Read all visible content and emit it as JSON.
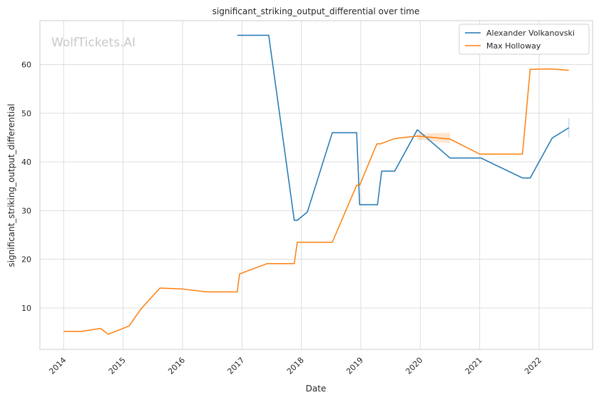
{
  "chart_data": {
    "type": "line",
    "title": "significant_striking_output_differential over time",
    "xlabel": "Date",
    "ylabel": "significant_striking_output_differential",
    "watermark": "WolfTickets.AI",
    "xlim": [
      2013.6,
      2022.9
    ],
    "ylim": [
      1.5,
      69
    ],
    "x_ticks": [
      2014,
      2015,
      2016,
      2017,
      2018,
      2019,
      2020,
      2021,
      2022
    ],
    "x_tick_labels": [
      "2014",
      "2015",
      "2016",
      "2017",
      "2018",
      "2019",
      "2020",
      "2021",
      "2022"
    ],
    "y_ticks": [
      10,
      20,
      30,
      40,
      50,
      60
    ],
    "y_tick_labels": [
      "10",
      "20",
      "30",
      "40",
      "50",
      "60"
    ],
    "grid": true,
    "legend_position": "top-right",
    "series": [
      {
        "name": "Alexander Volkanovski",
        "color": "#1f77b4",
        "x": [
          2016.92,
          2017.45,
          2017.88,
          2017.93,
          2018.1,
          2018.52,
          2018.93,
          2018.98,
          2019.28,
          2019.35,
          2019.57,
          2019.95,
          2020.5,
          2021.02,
          2021.72,
          2021.85,
          2022.22,
          2022.5
        ],
        "y": [
          66.0,
          66.0,
          28.0,
          28.0,
          29.7,
          46.0,
          46.0,
          31.2,
          31.2,
          38.1,
          38.1,
          46.6,
          40.8,
          40.8,
          36.7,
          36.7,
          44.9,
          47.0
        ]
      },
      {
        "name": "Max Holloway",
        "color": "#ff7f0e",
        "x": [
          2014.0,
          2014.3,
          2014.62,
          2014.75,
          2015.1,
          2015.3,
          2015.62,
          2016.0,
          2016.4,
          2016.92,
          2016.96,
          2017.42,
          2017.88,
          2017.93,
          2018.52,
          2018.93,
          2018.98,
          2019.27,
          2019.33,
          2019.57,
          2019.95,
          2020.5,
          2021.0,
          2021.72,
          2021.85,
          2022.2,
          2022.5
        ],
        "y": [
          5.2,
          5.2,
          5.8,
          4.6,
          6.3,
          9.8,
          14.1,
          13.9,
          13.3,
          13.3,
          17.0,
          19.1,
          19.1,
          23.5,
          23.5,
          35.2,
          35.2,
          43.7,
          43.7,
          44.8,
          45.3,
          44.7,
          41.6,
          41.6,
          59.0,
          59.1,
          58.8
        ]
      }
    ],
    "confidence_bands": [
      {
        "series": "Max Holloway",
        "x": [
          2019.95,
          2020.5
        ],
        "lower": [
          44.6,
          43.8
        ],
        "upper": [
          45.8,
          46.0
        ],
        "color": "#ff7f0e"
      },
      {
        "series": "Alexander Volkanovski",
        "x": [
          2022.5,
          2022.5
        ],
        "lower": [
          45.0,
          45.0
        ],
        "upper": [
          49.0,
          49.0
        ],
        "color": "#1f77b4"
      }
    ]
  }
}
